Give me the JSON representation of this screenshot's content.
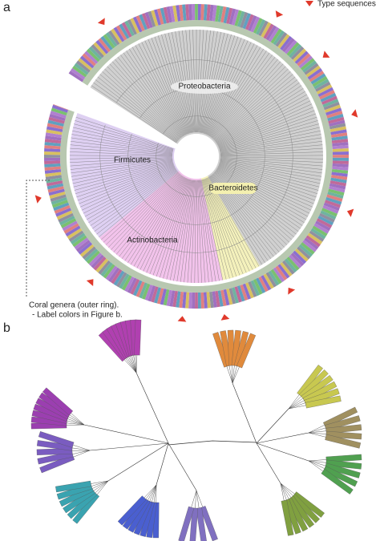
{
  "figure": {
    "panel_a": {
      "label": "a",
      "legend": "Type sequences",
      "clades": [
        "Proteobacteria",
        "Firmicutes",
        "Bacteroidetes",
        "Actinobacteria"
      ],
      "note": [
        "Coral genera (outer ring).",
        "- Label colors in Figure b."
      ]
    },
    "panel_b": {
      "label": "b"
    }
  }
}
